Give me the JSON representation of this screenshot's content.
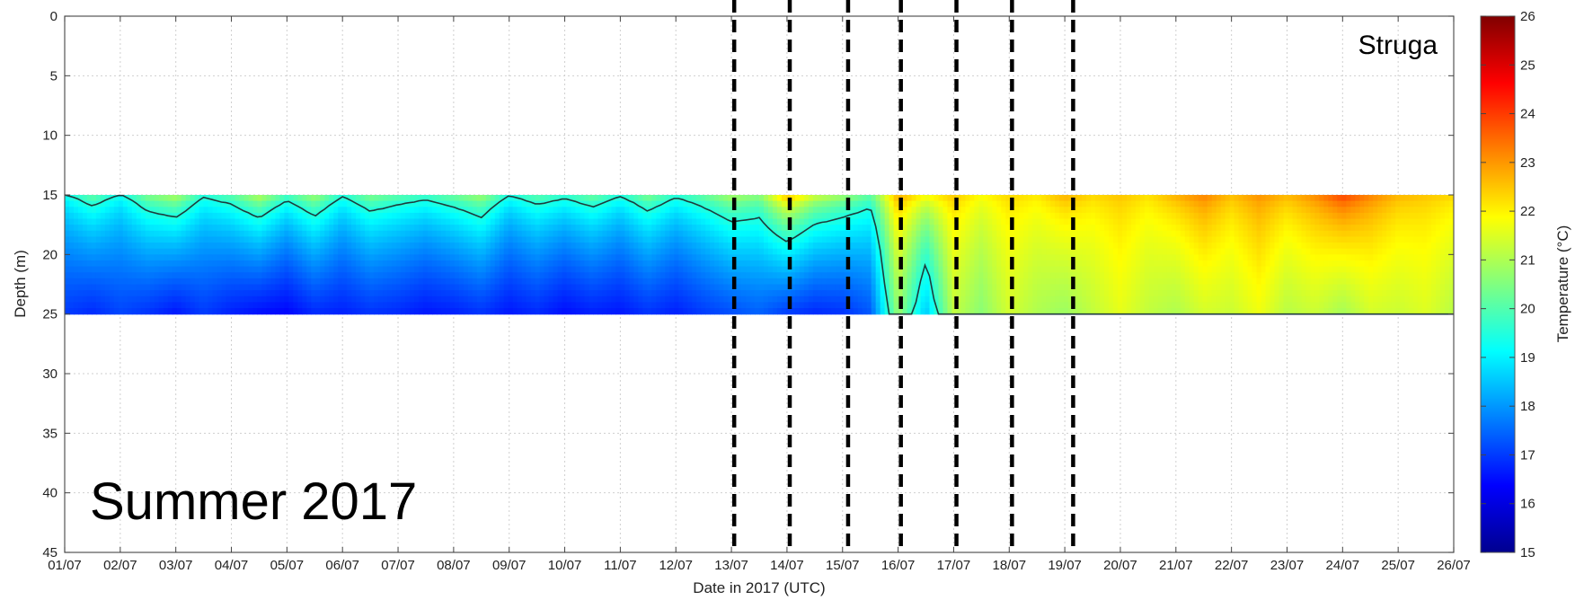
{
  "chart_data": {
    "type": "heatmap",
    "xlabel": "Date in 2017 (UTC)",
    "ylabel": "Depth (m)",
    "colorbar_label": "Temperature (°C)",
    "site_label": "Struga",
    "season_label": "Summer 2017",
    "x_tick_labels": [
      "01/07",
      "02/07",
      "03/07",
      "04/07",
      "05/07",
      "06/07",
      "07/07",
      "08/07",
      "09/07",
      "10/07",
      "11/07",
      "12/07",
      "13/07",
      "14/07",
      "15/07",
      "16/07",
      "17/07",
      "18/07",
      "19/07",
      "20/07",
      "21/07",
      "22/07",
      "23/07",
      "24/07",
      "25/07",
      "26/07"
    ],
    "y_ticks": [
      0,
      5,
      10,
      15,
      20,
      25,
      30,
      35,
      40,
      45
    ],
    "ylim": [
      0,
      45
    ],
    "y_reversed": true,
    "data_depth_range": [
      15,
      25
    ],
    "colorbar_ticks": [
      15,
      16,
      17,
      18,
      19,
      20,
      21,
      22,
      23,
      24,
      25,
      26
    ],
    "colorbar_range": [
      15,
      26
    ],
    "colormap": [
      "#00008f",
      "#0000ff",
      "#0080ff",
      "#00ffff",
      "#80ff80",
      "#ffff00",
      "#ff8000",
      "#ff0000",
      "#800000"
    ],
    "grid": true,
    "dashed_event_lines_day": [
      13.05,
      14.05,
      15.1,
      16.05,
      17.05,
      18.05,
      19.15
    ],
    "temperature_profile": {
      "days": [
        1,
        1.5,
        2,
        2.5,
        3,
        3.5,
        4,
        4.5,
        5,
        5.5,
        6,
        6.5,
        7,
        7.5,
        8,
        8.5,
        9,
        9.5,
        10,
        10.5,
        11,
        11.5,
        12,
        12.5,
        13,
        13.5,
        14,
        14.5,
        15,
        15.5,
        16,
        16.5,
        17,
        17.5,
        18,
        18.5,
        19,
        19.5,
        20,
        20.5,
        21,
        21.5,
        22,
        22.5,
        23,
        23.5,
        24,
        24.5,
        25,
        25.5,
        26
      ],
      "surface_15m": [
        19.5,
        20.5,
        19.5,
        20.8,
        21.4,
        19.8,
        20.4,
        21.5,
        20.2,
        21.2,
        19.8,
        20.8,
        20.4,
        20.1,
        20.6,
        21.2,
        19.7,
        20.4,
        20.0,
        20.6,
        19.8,
        20.8,
        19.9,
        20.5,
        21.3,
        20.9,
        23.2,
        21.8,
        21.2,
        20.4,
        23.0,
        22.2,
        22.6,
        22.0,
        22.4,
        22.2,
        22.9,
        22.4,
        22.6,
        22.3,
        22.9,
        23.4,
        22.7,
        23.2,
        22.8,
        23.3,
        24.2,
        23.4,
        22.8,
        22.6,
        22.4
      ],
      "bottom_25m": [
        17.0,
        16.8,
        17.1,
        16.9,
        16.6,
        17.0,
        16.7,
        16.5,
        16.4,
        16.8,
        16.7,
        16.9,
        16.8,
        16.6,
        16.7,
        16.9,
        16.6,
        16.8,
        16.5,
        16.7,
        16.6,
        16.9,
        16.7,
        17.0,
        17.2,
        17.4,
        17.0,
        16.8,
        16.9,
        17.3,
        20.8,
        18.5,
        21.2,
        20.6,
        21.4,
        21.0,
        20.8,
        21.2,
        21.6,
        21.2,
        21.0,
        21.4,
        21.3,
        21.7,
        21.1,
        21.3,
        20.9,
        21.4,
        21.3,
        21.5,
        21.1
      ]
    }
  }
}
